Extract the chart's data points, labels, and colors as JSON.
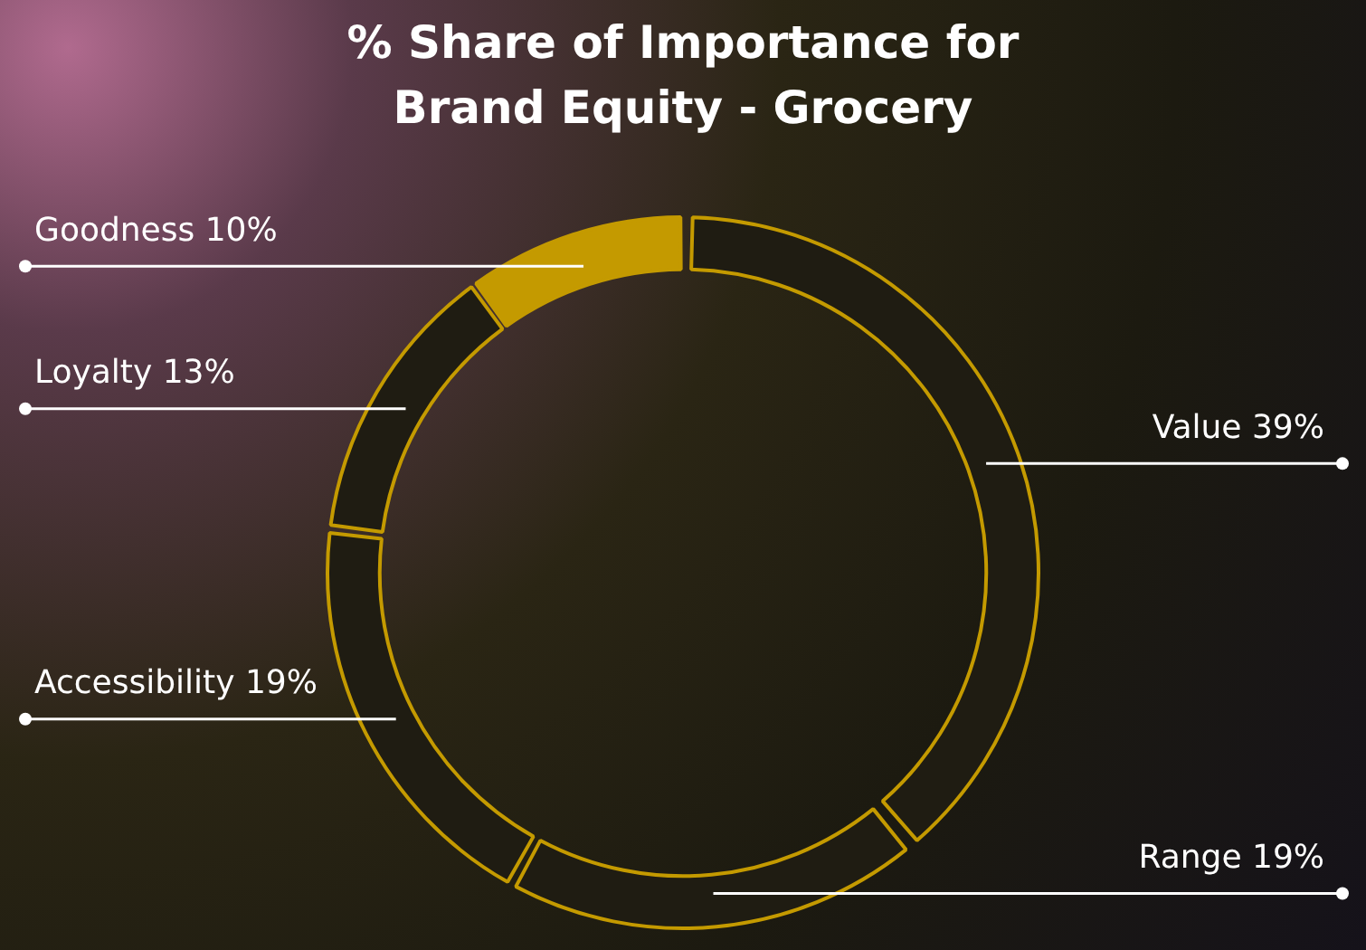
{
  "chart_data": {
    "type": "donut",
    "title": "% Share of Importance for Brand Equity - Grocery",
    "categories": [
      "Value",
      "Range",
      "Accessibility",
      "Loyalty",
      "Goodness"
    ],
    "values": [
      39,
      19,
      19,
      13,
      10
    ],
    "value_labels": [
      "39%",
      "19%",
      "19%",
      "13%",
      "10%"
    ],
    "colors": [
      "#1f1c12",
      "#1f1c12",
      "#1f1c12",
      "#1f1c12",
      "#c49a00"
    ],
    "legend": false
  }
}
